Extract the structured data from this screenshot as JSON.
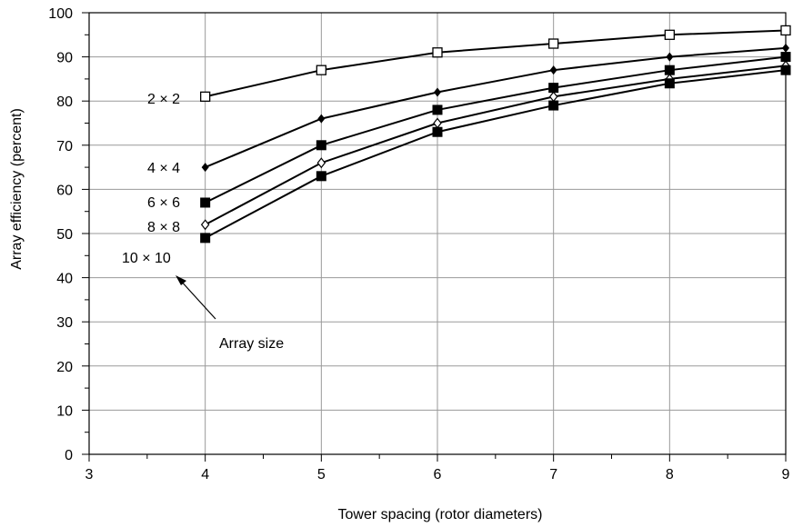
{
  "chart_data": {
    "type": "line",
    "title": "",
    "xlabel": "Tower spacing (rotor diameters)",
    "ylabel": "Array efficiency (percent)",
    "xlim": [
      3,
      9
    ],
    "ylim": [
      0,
      100
    ],
    "x_ticks": [
      3,
      4,
      5,
      6,
      7,
      8,
      9
    ],
    "y_ticks": [
      0,
      10,
      20,
      30,
      40,
      50,
      60,
      70,
      80,
      90,
      100
    ],
    "grid": true,
    "x": [
      4,
      5,
      6,
      7,
      8,
      9
    ],
    "series": [
      {
        "name": "2 × 2",
        "marker": "open-square",
        "values": [
          81,
          87,
          91,
          93,
          95,
          96
        ]
      },
      {
        "name": "4 × 4",
        "marker": "filled-diamond",
        "values": [
          65,
          76,
          82,
          87,
          90,
          92
        ]
      },
      {
        "name": "6 × 6",
        "marker": "filled-square",
        "values": [
          57,
          70,
          78,
          83,
          87,
          90
        ]
      },
      {
        "name": "8 × 8",
        "marker": "open-diamond",
        "values": [
          52,
          66,
          75,
          81,
          85,
          88
        ]
      },
      {
        "name": "10 × 10",
        "marker": "filled-square",
        "values": [
          49,
          63,
          73,
          79,
          84,
          87
        ]
      }
    ],
    "annotation": "Array size"
  }
}
